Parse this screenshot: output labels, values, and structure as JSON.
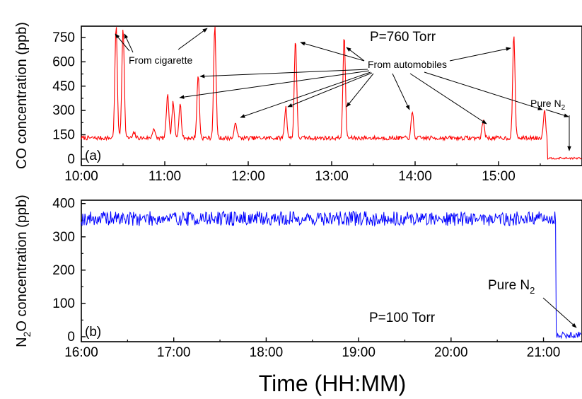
{
  "x_axis_label": "Time (HH:MM)",
  "chart_data": [
    {
      "type": "line",
      "panel_label": "(a)",
      "ylabel": "CO concentration (ppb)",
      "xlim": [
        600,
        960
      ],
      "ylim": [
        -40,
        820
      ],
      "xticks": [
        600,
        660,
        720,
        780,
        840,
        900
      ],
      "xtick_labels": [
        "10:00",
        "11:00",
        "12:00",
        "13:00",
        "14:00",
        "15:00"
      ],
      "yticks": [
        0,
        150,
        300,
        450,
        600,
        750
      ],
      "ytick_labels": [
        "0",
        "150",
        "300",
        "450",
        "600",
        "750"
      ],
      "color": "#ff0000",
      "annotations": {
        "condition": "P=760 Torr",
        "cigarette": "From cigarette",
        "automobiles": "From automobiles",
        "pure_prefix": "Pure N",
        "pure_sub": "2"
      },
      "series": [
        {
          "baseline": 130,
          "noise": 13,
          "drop_at": 935,
          "after_level": 5,
          "peaks": [
            {
              "x": 625,
              "y": 820
            },
            {
              "x": 630,
              "y": 820
            },
            {
              "x": 638,
              "y": 160
            },
            {
              "x": 652,
              "y": 190
            },
            {
              "x": 662,
              "y": 400
            },
            {
              "x": 666,
              "y": 350
            },
            {
              "x": 671,
              "y": 350
            },
            {
              "x": 684,
              "y": 520
            },
            {
              "x": 696,
              "y": 820
            },
            {
              "x": 711,
              "y": 230
            },
            {
              "x": 747,
              "y": 320
            },
            {
              "x": 754,
              "y": 745
            },
            {
              "x": 789,
              "y": 770
            },
            {
              "x": 838,
              "y": 290
            },
            {
              "x": 889,
              "y": 240
            },
            {
              "x": 911,
              "y": 765
            },
            {
              "x": 933,
              "y": 300
            }
          ]
        }
      ]
    },
    {
      "type": "line",
      "panel_label": "(b)",
      "ylabel_prefix": "N",
      "ylabel_sub": "2",
      "ylabel_rest": "O concentration (ppb)",
      "xlim": [
        960,
        1285
      ],
      "ylim": [
        -15,
        410
      ],
      "xticks": [
        960,
        1020,
        1080,
        1140,
        1200,
        1260
      ],
      "xtick_labels": [
        "16:00",
        "17:00",
        "18:00",
        "19:00",
        "20:00",
        "21:00"
      ],
      "yticks": [
        0,
        100,
        200,
        300,
        400
      ],
      "ytick_labels": [
        "0",
        "100",
        "200",
        "300",
        "400"
      ],
      "color": "#0000ff",
      "annotations": {
        "condition": "P=100 Torr",
        "pure_prefix": "Pure N",
        "pure_sub": "2"
      },
      "series": [
        {
          "baseline": 355,
          "noise": 22,
          "drop_at": 1268,
          "after_level": 5
        }
      ]
    }
  ]
}
